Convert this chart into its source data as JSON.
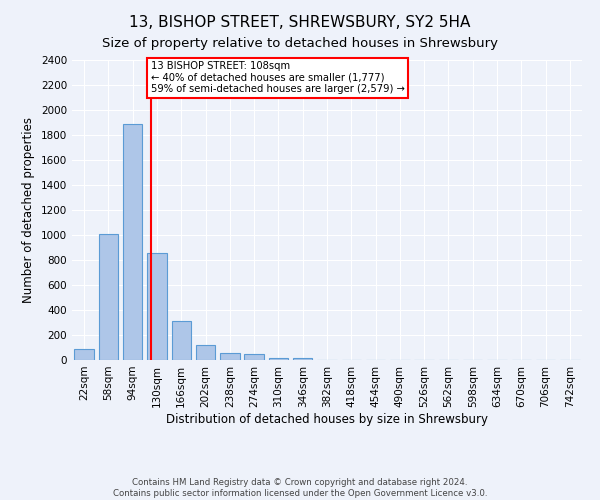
{
  "title": "13, BISHOP STREET, SHREWSBURY, SY2 5HA",
  "subtitle": "Size of property relative to detached houses in Shrewsbury",
  "xlabel": "Distribution of detached houses by size in Shrewsbury",
  "ylabel": "Number of detached properties",
  "footer_line1": "Contains HM Land Registry data © Crown copyright and database right 2024.",
  "footer_line2": "Contains public sector information licensed under the Open Government Licence v3.0.",
  "bin_labels": [
    "22sqm",
    "58sqm",
    "94sqm",
    "130sqm",
    "166sqm",
    "202sqm",
    "238sqm",
    "274sqm",
    "310sqm",
    "346sqm",
    "382sqm",
    "418sqm",
    "454sqm",
    "490sqm",
    "526sqm",
    "562sqm",
    "598sqm",
    "634sqm",
    "670sqm",
    "706sqm",
    "742sqm"
  ],
  "bar_values": [
    90,
    1010,
    1890,
    860,
    310,
    120,
    55,
    48,
    20,
    18,
    0,
    0,
    0,
    0,
    0,
    0,
    0,
    0,
    0,
    0,
    0
  ],
  "bar_color": "#aec6e8",
  "bar_edge_color": "#5b9bd5",
  "red_line_x": 2.75,
  "annotation_text": "13 BISHOP STREET: 108sqm\n← 40% of detached houses are smaller (1,777)\n59% of semi-detached houses are larger (2,579) →",
  "annotation_box_color": "white",
  "annotation_box_edge": "red",
  "ylim": [
    0,
    2400
  ],
  "yticks": [
    0,
    200,
    400,
    600,
    800,
    1000,
    1200,
    1400,
    1600,
    1800,
    2000,
    2200,
    2400
  ],
  "bg_color": "#eef2fa",
  "grid_color": "white",
  "title_fontsize": 11,
  "subtitle_fontsize": 9.5,
  "axis_label_fontsize": 8.5,
  "tick_fontsize": 7.5,
  "footer_fontsize": 6.2
}
